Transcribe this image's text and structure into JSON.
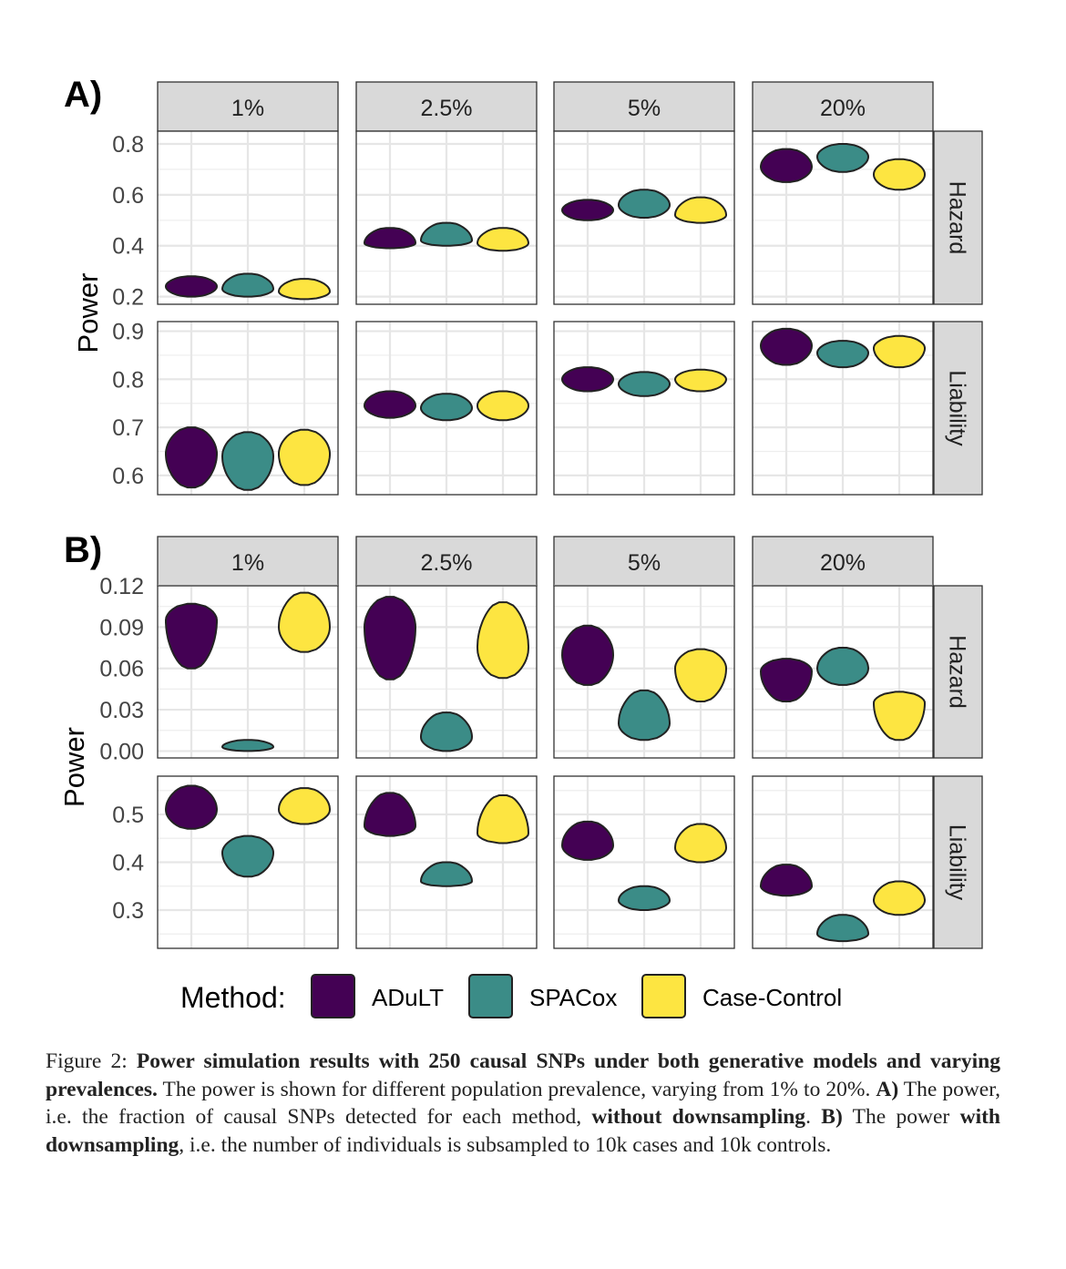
{
  "colors": {
    "ADuLT": "#440154",
    "SPACox": "#3b8c87",
    "Case-Control": "#fde541",
    "strip_bg": "#d9d9d9",
    "grid": "#e6e6e6",
    "outline": "#222222"
  },
  "legend": {
    "title": "Method:",
    "items": [
      {
        "key": "ADuLT",
        "label": "ADuLT"
      },
      {
        "key": "SPACox",
        "label": "SPACox"
      },
      {
        "key": "Case-Control",
        "label": "Case-Control"
      }
    ]
  },
  "chart_data": [
    {
      "type": "violin",
      "panel_label": "A)",
      "ylabel": "Power",
      "facet_cols": [
        "1%",
        "2.5%",
        "5%",
        "20%"
      ],
      "facet_rows": [
        {
          "label": "Hazard",
          "ylim": [
            0.17,
            0.85
          ],
          "ticks": [
            0.2,
            0.4,
            0.6,
            0.8
          ],
          "tick_labels": [
            "0.2",
            "0.4",
            "0.6",
            "0.8"
          ],
          "cells": [
            [
              {
                "method": "ADuLT",
                "min": 0.2,
                "max": 0.28,
                "mode": 0.24
              },
              {
                "method": "SPACox",
                "min": 0.2,
                "max": 0.29,
                "mode": 0.23
              },
              {
                "method": "Case-Control",
                "min": 0.19,
                "max": 0.27,
                "mode": 0.22
              }
            ],
            [
              {
                "method": "ADuLT",
                "min": 0.39,
                "max": 0.47,
                "mode": 0.41
              },
              {
                "method": "SPACox",
                "min": 0.4,
                "max": 0.49,
                "mode": 0.42
              },
              {
                "method": "Case-Control",
                "min": 0.38,
                "max": 0.47,
                "mode": 0.41
              }
            ],
            [
              {
                "method": "ADuLT",
                "min": 0.5,
                "max": 0.58,
                "mode": 0.54
              },
              {
                "method": "SPACox",
                "min": 0.51,
                "max": 0.62,
                "mode": 0.56
              },
              {
                "method": "Case-Control",
                "min": 0.49,
                "max": 0.59,
                "mode": 0.52
              }
            ],
            [
              {
                "method": "ADuLT",
                "min": 0.65,
                "max": 0.78,
                "mode": 0.71
              },
              {
                "method": "SPACox",
                "min": 0.69,
                "max": 0.8,
                "mode": 0.75
              },
              {
                "method": "Case-Control",
                "min": 0.62,
                "max": 0.74,
                "mode": 0.68
              }
            ]
          ]
        },
        {
          "label": "Liability",
          "ylim": [
            0.56,
            0.92
          ],
          "ticks": [
            0.6,
            0.7,
            0.8,
            0.9
          ],
          "tick_labels": [
            "0.6",
            "0.7",
            "0.8",
            "0.9"
          ],
          "cells": [
            [
              {
                "method": "ADuLT",
                "min": 0.575,
                "max": 0.7,
                "mode": 0.645
              },
              {
                "method": "SPACox",
                "min": 0.57,
                "max": 0.69,
                "mode": 0.64
              },
              {
                "method": "Case-Control",
                "min": 0.58,
                "max": 0.695,
                "mode": 0.645
              }
            ],
            [
              {
                "method": "ADuLT",
                "min": 0.72,
                "max": 0.775,
                "mode": 0.745
              },
              {
                "method": "SPACox",
                "min": 0.715,
                "max": 0.77,
                "mode": 0.74
              },
              {
                "method": "Case-Control",
                "min": 0.715,
                "max": 0.775,
                "mode": 0.745
              }
            ],
            [
              {
                "method": "ADuLT",
                "min": 0.775,
                "max": 0.825,
                "mode": 0.8
              },
              {
                "method": "SPACox",
                "min": 0.765,
                "max": 0.815,
                "mode": 0.79
              },
              {
                "method": "Case-Control",
                "min": 0.775,
                "max": 0.82,
                "mode": 0.8
              }
            ],
            [
              {
                "method": "ADuLT",
                "min": 0.83,
                "max": 0.905,
                "mode": 0.87
              },
              {
                "method": "SPACox",
                "min": 0.825,
                "max": 0.88,
                "mode": 0.855
              },
              {
                "method": "Case-Control",
                "min": 0.825,
                "max": 0.89,
                "mode": 0.865
              }
            ]
          ]
        }
      ]
    },
    {
      "type": "violin",
      "panel_label": "B)",
      "ylabel": "Power",
      "facet_cols": [
        "1%",
        "2.5%",
        "5%",
        "20%"
      ],
      "facet_rows": [
        {
          "label": "Hazard",
          "ylim": [
            -0.005,
            0.12
          ],
          "ticks": [
            0.0,
            0.03,
            0.06,
            0.09,
            0.12
          ],
          "tick_labels": [
            "0.00",
            "0.03",
            "0.06",
            "0.09",
            "0.12"
          ],
          "cells": [
            [
              {
                "method": "ADuLT",
                "min": 0.06,
                "max": 0.107,
                "mode": 0.095
              },
              {
                "method": "SPACox",
                "min": 0.0,
                "max": 0.008,
                "mode": 0.003
              },
              {
                "method": "Case-Control",
                "min": 0.072,
                "max": 0.115,
                "mode": 0.09
              }
            ],
            [
              {
                "method": "ADuLT",
                "min": 0.052,
                "max": 0.112,
                "mode": 0.09
              },
              {
                "method": "SPACox",
                "min": 0.0,
                "max": 0.028,
                "mode": 0.01
              },
              {
                "method": "Case-Control",
                "min": 0.053,
                "max": 0.108,
                "mode": 0.075
              }
            ],
            [
              {
                "method": "ADuLT",
                "min": 0.048,
                "max": 0.091,
                "mode": 0.07
              },
              {
                "method": "SPACox",
                "min": 0.008,
                "max": 0.044,
                "mode": 0.02
              },
              {
                "method": "Case-Control",
                "min": 0.036,
                "max": 0.074,
                "mode": 0.06
              }
            ],
            [
              {
                "method": "ADuLT",
                "min": 0.036,
                "max": 0.067,
                "mode": 0.058
              },
              {
                "method": "SPACox",
                "min": 0.048,
                "max": 0.075,
                "mode": 0.06
              },
              {
                "method": "Case-Control",
                "min": 0.008,
                "max": 0.043,
                "mode": 0.035
              }
            ]
          ]
        },
        {
          "label": "Liability",
          "ylim": [
            0.22,
            0.58
          ],
          "ticks": [
            0.3,
            0.4,
            0.5
          ],
          "tick_labels": [
            "0.3",
            "0.4",
            "0.5"
          ],
          "cells": [
            [
              {
                "method": "ADuLT",
                "min": 0.47,
                "max": 0.56,
                "mode": 0.51
              },
              {
                "method": "SPACox",
                "min": 0.37,
                "max": 0.455,
                "mode": 0.42
              },
              {
                "method": "Case-Control",
                "min": 0.48,
                "max": 0.555,
                "mode": 0.51
              }
            ],
            [
              {
                "method": "ADuLT",
                "min": 0.455,
                "max": 0.545,
                "mode": 0.475
              },
              {
                "method": "SPACox",
                "min": 0.35,
                "max": 0.4,
                "mode": 0.36
              },
              {
                "method": "Case-Control",
                "min": 0.44,
                "max": 0.54,
                "mode": 0.46
              }
            ],
            [
              {
                "method": "ADuLT",
                "min": 0.405,
                "max": 0.485,
                "mode": 0.435
              },
              {
                "method": "SPACox",
                "min": 0.3,
                "max": 0.35,
                "mode": 0.32
              },
              {
                "method": "Case-Control",
                "min": 0.4,
                "max": 0.48,
                "mode": 0.43
              }
            ],
            [
              {
                "method": "ADuLT",
                "min": 0.33,
                "max": 0.395,
                "mode": 0.35
              },
              {
                "method": "SPACox",
                "min": 0.235,
                "max": 0.29,
                "mode": 0.25
              },
              {
                "method": "Case-Control",
                "min": 0.29,
                "max": 0.36,
                "mode": 0.32
              }
            ]
          ]
        }
      ]
    }
  ],
  "caption": {
    "prefix": "Figure 2: ",
    "title": "Power simulation results with 250 causal SNPs under both generative models and varying prevalences.",
    "text1": " The power is shown for different population prevalence, varying from 1% to 20%. ",
    "a_label": "A)",
    "text2": " The power, i.e. the fraction of causal SNPs detected for each method, ",
    "a_bold": "without downsampling",
    "text3": ". ",
    "b_label": "B)",
    "text4": " The power ",
    "b_bold": "with downsampling",
    "text5": ", i.e. the number of individuals is subsampled to 10k cases and 10k controls."
  }
}
